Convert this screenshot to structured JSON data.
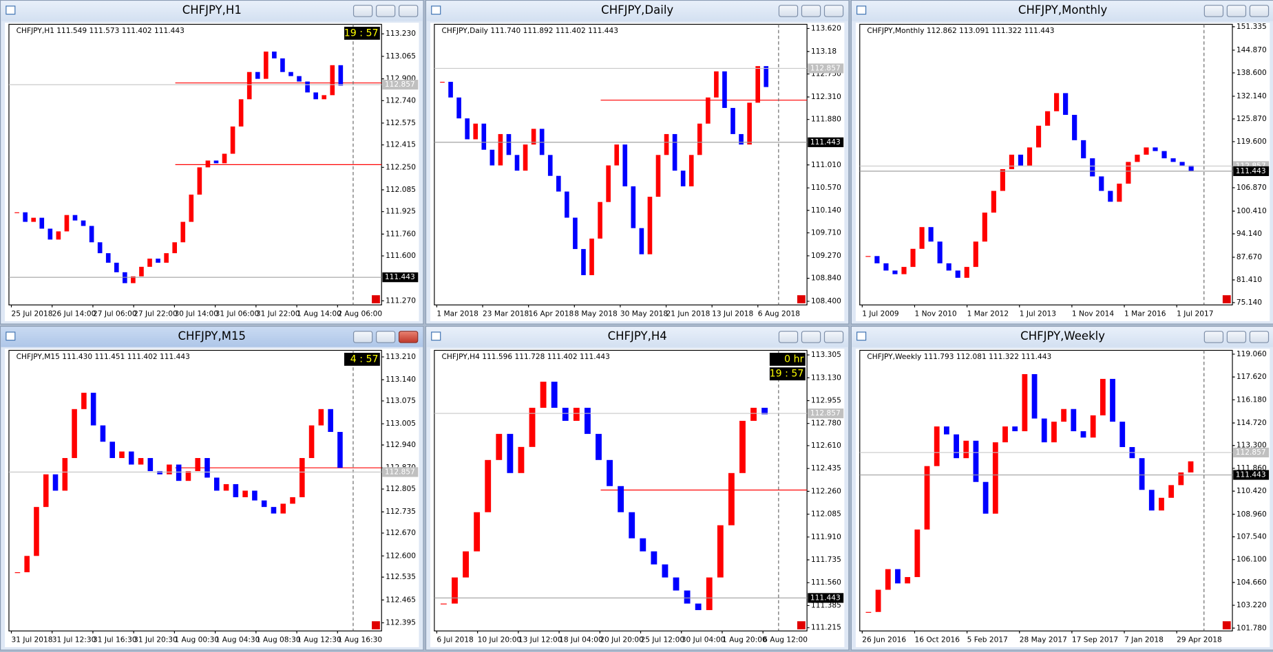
{
  "windows": [
    {
      "title": "CHFJPY,H1",
      "info": "CHFJPY,H1  111.549 111.573 111.402 111.443",
      "timer": [
        "19 : 57"
      ],
      "ylim": [
        111.24,
        113.3
      ],
      "yticks": [
        {
          "value": 113.23,
          "label": "113.230"
        },
        113.065,
        {
          "value": 112.9,
          "label": "112.900"
        },
        {
          "value": 112.74,
          "label": "112.740"
        },
        112.575,
        112.415,
        {
          "value": 112.25,
          "label": "112.250"
        },
        112.085,
        111.925,
        {
          "value": 111.76,
          "label": "111.760"
        },
        {
          "value": 111.6,
          "label": "111.600"
        },
        {
          "value": 111.27,
          "label": "111.270"
        }
      ],
      "price_labels": [
        {
          "value": 112.857,
          "color": "#c0c0c0"
        },
        {
          "value": 111.443,
          "color": "#000000"
        }
      ],
      "hlines": [
        112.27,
        112.87
      ],
      "time_labels": [
        "25 Jul 2018",
        "26 Jul 14:00",
        "27 Jul 06:00",
        "27 Jul 22:00",
        "30 Jul 14:00",
        "31 Jul 06:00",
        "31 Jul 22:00",
        "1 Aug 14:00",
        "2 Aug 06:00"
      ],
      "closes": [
        111.92,
        111.85,
        111.88,
        111.8,
        111.72,
        111.78,
        111.9,
        111.86,
        111.82,
        111.7,
        111.62,
        111.55,
        111.48,
        111.4,
        111.45,
        111.52,
        111.58,
        111.55,
        111.62,
        111.7,
        111.85,
        112.05,
        112.25,
        112.3,
        112.28,
        112.35,
        112.55,
        112.75,
        112.95,
        112.9,
        113.1,
        113.05,
        112.95,
        112.92,
        112.88,
        112.8,
        112.75,
        112.78,
        113.0,
        112.85
      ]
    },
    {
      "title": "CHFJPY,Daily",
      "info": "CHFJPY,Daily  111.740 111.892 111.402 111.443",
      "timer": [],
      "ylim": [
        108.33,
        113.7
      ],
      "yticks": [
        {
          "value": 113.62,
          "label": "113.620"
        },
        113.18,
        {
          "value": 112.75,
          "label": "112.750"
        },
        {
          "value": 112.31,
          "label": "112.310"
        },
        {
          "value": 111.88,
          "label": "111.880"
        },
        {
          "value": 111.01,
          "label": "111.010"
        },
        {
          "value": 110.57,
          "label": "110.570"
        },
        {
          "value": 110.14,
          "label": "110.140"
        },
        {
          "value": 109.71,
          "label": "109.710"
        },
        {
          "value": 109.27,
          "label": "109.270"
        },
        {
          "value": 108.84,
          "label": "108.840"
        },
        {
          "value": 108.4,
          "label": "108.400"
        }
      ],
      "price_labels": [
        {
          "value": 112.857,
          "color": "#c0c0c0"
        },
        {
          "value": 111.443,
          "color": "#000000"
        }
      ],
      "hlines": [
        112.25
      ],
      "time_labels": [
        "1 Mar 2018",
        "23 Mar 2018",
        "16 Apr 2018",
        "8 May 2018",
        "30 May 2018",
        "21 Jun 2018",
        "13 Jul 2018",
        "6 Aug 2018"
      ],
      "closes": [
        112.6,
        112.3,
        111.9,
        111.5,
        111.8,
        111.3,
        111.0,
        111.6,
        111.2,
        110.9,
        111.4,
        111.7,
        111.2,
        110.8,
        110.5,
        110.0,
        109.4,
        108.9,
        109.6,
        110.3,
        111.0,
        111.4,
        110.6,
        109.8,
        109.3,
        110.4,
        111.2,
        111.6,
        110.9,
        110.6,
        111.2,
        111.8,
        112.3,
        112.8,
        112.1,
        111.6,
        111.4,
        112.2,
        112.9,
        112.5
      ]
    },
    {
      "title": "CHFJPY,Monthly",
      "info": "CHFJPY,Monthly  112.862 113.091 111.322 111.443",
      "timer": [],
      "ylim": [
        74.5,
        152.0
      ],
      "yticks": [
        151.335,
        {
          "value": 144.87,
          "label": "144.870"
        },
        {
          "value": 138.6,
          "label": "138.600"
        },
        {
          "value": 132.14,
          "label": "132.140"
        },
        {
          "value": 125.87,
          "label": "125.870"
        },
        {
          "value": 119.6,
          "label": "119.600"
        },
        {
          "value": 106.87,
          "label": "106.870"
        },
        {
          "value": 100.41,
          "label": "100.410"
        },
        {
          "value": 94.14,
          "label": "94.140"
        },
        {
          "value": 87.67,
          "label": "87.670"
        },
        {
          "value": 81.41,
          "label": "81.410"
        },
        {
          "value": 75.14,
          "label": "75.140"
        }
      ],
      "price_labels": [
        {
          "value": 112.857,
          "color": "#c0c0c0"
        },
        {
          "value": 111.443,
          "color": "#000000"
        }
      ],
      "hlines": [],
      "time_labels": [
        "1 Jul 2009",
        "1 Nov 2010",
        "1 Mar 2012",
        "1 Jul 2013",
        "1 Nov 2014",
        "1 Mar 2016",
        "1 Jul 2017"
      ],
      "closes": [
        88,
        86,
        84,
        83,
        85,
        90,
        96,
        92,
        86,
        84,
        82,
        85,
        92,
        100,
        106,
        112,
        116,
        113,
        118,
        124,
        128,
        133,
        127,
        120,
        115,
        110,
        106,
        103,
        108,
        114,
        116,
        118,
        117,
        115,
        114,
        113,
        111.4
      ]
    },
    {
      "title": "CHFJPY,M15",
      "info": "CHFJPY,M15  111.430 111.451 111.402 111.443",
      "timer": [
        "4 : 57"
      ],
      "ylim": [
        112.37,
        113.23
      ],
      "active": true,
      "yticks": [
        {
          "value": 113.21,
          "label": "113.210"
        },
        {
          "value": 113.14,
          "label": "113.140"
        },
        113.075,
        113.005,
        {
          "value": 112.94,
          "label": "112.940"
        },
        {
          "value": 112.87,
          "label": "112.870"
        },
        112.805,
        112.735,
        {
          "value": 112.67,
          "label": "112.670"
        },
        {
          "value": 112.6,
          "label": "112.600"
        },
        112.535,
        112.465,
        112.395
      ],
      "price_labels": [
        {
          "value": 112.857,
          "color": "#c0c0c0"
        }
      ],
      "hlines": [
        112.87
      ],
      "time_labels": [
        "31 Jul 2018",
        "31 Jul 12:30",
        "31 Jul 16:30",
        "31 Jul 20:30",
        "1 Aug 00:30",
        "1 Aug 04:30",
        "1 Aug 08:30",
        "1 Aug 12:30",
        "1 Aug 16:30"
      ],
      "closes": [
        112.55,
        112.6,
        112.75,
        112.85,
        112.8,
        112.9,
        113.05,
        113.1,
        113.0,
        112.95,
        112.9,
        112.92,
        112.88,
        112.9,
        112.86,
        112.85,
        112.88,
        112.83,
        112.86,
        112.9,
        112.84,
        112.8,
        112.82,
        112.78,
        112.8,
        112.77,
        112.75,
        112.73,
        112.76,
        112.78,
        112.9,
        113.0,
        113.05,
        112.98,
        112.87
      ]
    },
    {
      "title": "CHFJPY,H4",
      "info": "CHFJPY,H4  111.596 111.728 111.402 111.443",
      "timer": [
        "0 hr",
        "19 : 57"
      ],
      "ylim": [
        111.19,
        113.34
      ],
      "yticks": [
        113.305,
        {
          "value": 113.13,
          "label": "113.130"
        },
        112.955,
        {
          "value": 112.78,
          "label": "112.780"
        },
        {
          "value": 112.61,
          "label": "112.610"
        },
        112.435,
        {
          "value": 112.26,
          "label": "112.260"
        },
        112.085,
        {
          "value": 111.91,
          "label": "111.910"
        },
        111.735,
        {
          "value": 111.56,
          "label": "111.560"
        },
        111.385,
        111.215
      ],
      "price_labels": [
        {
          "value": 112.857,
          "color": "#c0c0c0"
        },
        {
          "value": 111.443,
          "color": "#000000"
        }
      ],
      "hlines": [
        112.27
      ],
      "time_labels": [
        "6 Jul 2018",
        "10 Jul 20:00",
        "13 Jul 12:00",
        "18 Jul 04:00",
        "20 Jul 20:00",
        "25 Jul 12:00",
        "30 Jul 04:00",
        "1 Aug 20:00",
        "6 Aug 12:00"
      ],
      "closes": [
        111.4,
        111.6,
        111.8,
        112.1,
        112.5,
        112.7,
        112.4,
        112.6,
        112.9,
        113.1,
        112.9,
        112.8,
        112.9,
        112.7,
        112.5,
        112.3,
        112.1,
        111.9,
        111.8,
        111.7,
        111.6,
        111.5,
        111.4,
        111.35,
        111.6,
        112.0,
        112.4,
        112.8,
        112.9,
        112.85
      ]
    },
    {
      "title": "CHFJPY,Weekly",
      "info": "CHFJPY,Weekly  111.793 112.081 111.322 111.443",
      "timer": [],
      "ylim": [
        101.6,
        119.3
      ],
      "yticks": [
        {
          "value": 119.06,
          "label": "119.060"
        },
        {
          "value": 117.62,
          "label": "117.620"
        },
        {
          "value": 116.18,
          "label": "116.180"
        },
        {
          "value": 114.72,
          "label": "114.720"
        },
        {
          "value": 113.3,
          "label": "113.300"
        },
        {
          "value": 111.86,
          "label": "111.860"
        },
        {
          "value": 110.42,
          "label": "110.420"
        },
        {
          "value": 108.96,
          "label": "108.960"
        },
        {
          "value": 107.54,
          "label": "107.540"
        },
        {
          "value": 106.1,
          "label": "106.100"
        },
        {
          "value": 104.66,
          "label": "104.660"
        },
        {
          "value": 103.22,
          "label": "103.220"
        },
        {
          "value": 101.78,
          "label": "101.780"
        }
      ],
      "price_labels": [
        {
          "value": 112.857,
          "color": "#c0c0c0"
        },
        {
          "value": 111.443,
          "color": "#000000"
        }
      ],
      "hlines": [],
      "time_labels": [
        "26 Jun 2016",
        "16 Oct 2016",
        "5 Feb 2017",
        "28 May 2017",
        "17 Sep 2017",
        "7 Jan 2018",
        "29 Apr 2018"
      ],
      "closes": [
        102.8,
        104.2,
        105.5,
        104.6,
        105.0,
        108.0,
        112.0,
        114.5,
        114.0,
        112.5,
        113.6,
        111.0,
        109.0,
        113.5,
        114.5,
        114.2,
        117.8,
        115.0,
        113.5,
        114.8,
        115.6,
        114.2,
        113.8,
        115.2,
        117.5,
        114.8,
        113.2,
        112.5,
        110.5,
        109.2,
        110.0,
        110.8,
        111.6,
        112.3
      ]
    }
  ]
}
